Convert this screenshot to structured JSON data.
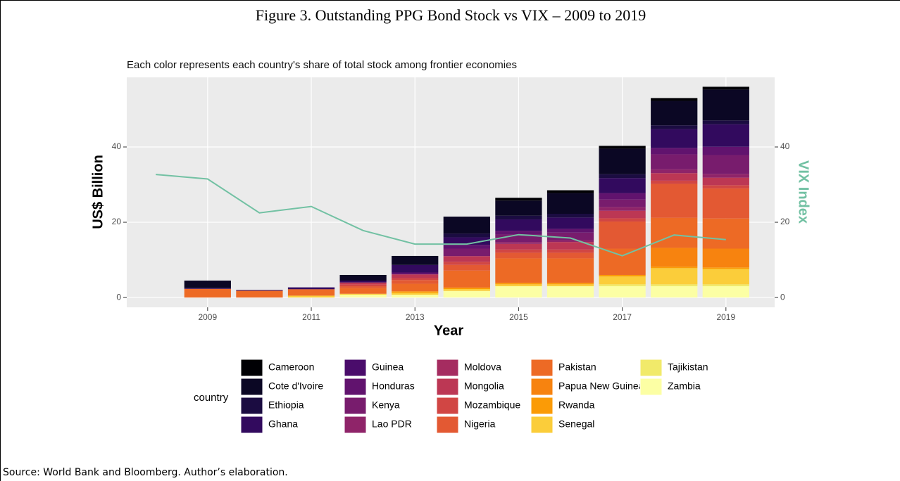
{
  "chart_data": {
    "type": "bar",
    "stacked": true,
    "title": "Figure 3. Outstanding PPG Bond Stock vs VIX – 2009 to 2019",
    "subtitle": "Each color represents each country's share of total stock among frontier economies",
    "source": "Source: World Bank and Bloomberg. Author’s elaboration.",
    "x_label": "Year",
    "y_label": "US$ Billion",
    "y2_label": "VIX Index",
    "legend_title": "country",
    "x": [
      2009,
      2010,
      2011,
      2012,
      2013,
      2014,
      2015,
      2016,
      2017,
      2018,
      2019
    ],
    "xlim": [
      2007.44,
      2019.94
    ],
    "xticks": [
      2009,
      2011,
      2013,
      2015,
      2017,
      2019
    ],
    "ylim": [
      -2.6,
      58.5
    ],
    "yticks": [
      0,
      20,
      40
    ],
    "y2lim": [
      -2.6,
      58.5
    ],
    "y2ticks": [
      0,
      20,
      40
    ],
    "grid": true,
    "series": [
      {
        "name": "Cameroon",
        "color": "#000004",
        "values": [
          0,
          0,
          0,
          0,
          0,
          0,
          0.75,
          0.75,
          0.75,
          0.75,
          0.75
        ]
      },
      {
        "name": "Cote d'Ivoire",
        "color": "#0b0724",
        "values": [
          2,
          0,
          0,
          1.5,
          2.4,
          4.5,
          4,
          5.5,
          6.8,
          6.5,
          8.2
        ]
      },
      {
        "name": "Ethiopia",
        "color": "#1b0c41",
        "values": [
          0,
          0,
          0,
          0,
          0,
          1,
          1,
          1,
          1,
          1,
          1
        ]
      },
      {
        "name": "Ghana",
        "color": "#320a5e",
        "values": [
          0.2,
          0.2,
          0.5,
          0.5,
          2,
          2,
          3,
          3,
          4,
          5,
          6
        ]
      },
      {
        "name": "Guinea",
        "color": "#4a0c6b",
        "values": [
          0,
          0,
          0,
          0,
          0,
          0,
          0,
          0,
          0,
          0,
          0
        ]
      },
      {
        "name": "Honduras",
        "color": "#61136e",
        "values": [
          0,
          0,
          0,
          0,
          0.5,
          1,
          1,
          1,
          1.7,
          1.7,
          2.2
        ]
      },
      {
        "name": "Kenya",
        "color": "#781c6d",
        "values": [
          0,
          0,
          0,
          0,
          0,
          2,
          2,
          2,
          2,
          4,
          5
        ]
      },
      {
        "name": "Lao PDR",
        "color": "#8f2469",
        "values": [
          0,
          0,
          0,
          0,
          0,
          0,
          0.5,
          0.5,
          1,
          1,
          1
        ]
      },
      {
        "name": "Moldova",
        "color": "#a52c60",
        "values": [
          0,
          0,
          0,
          0,
          0,
          0,
          0,
          0,
          0,
          0,
          0
        ]
      },
      {
        "name": "Mongolia",
        "color": "#bc3754",
        "values": [
          0,
          0,
          0,
          0.5,
          1,
          1.5,
          1.5,
          2,
          2,
          2,
          2
        ]
      },
      {
        "name": "Mozambique",
        "color": "#d14644",
        "values": [
          0,
          0,
          0,
          0.5,
          0.5,
          0.85,
          0.85,
          0.85,
          0.85,
          0.85,
          0.85
        ]
      },
      {
        "name": "Nigeria",
        "color": "#e35933",
        "values": [
          0,
          0,
          0,
          0.5,
          1,
          1.5,
          1.5,
          1.5,
          7.2,
          9,
          8
        ]
      },
      {
        "name": "Pakistan",
        "color": "#ed6a25",
        "values": [
          2.3,
          1.8,
          1.7,
          1.5,
          2,
          4.5,
          6.5,
          6.5,
          7,
          8,
          8
        ]
      },
      {
        "name": "Papua New Guinea",
        "color": "#f7830f",
        "values": [
          0,
          0,
          0,
          0,
          0,
          0,
          0,
          0,
          0,
          5,
          5
        ]
      },
      {
        "name": "Rwanda",
        "color": "#fb9b06",
        "values": [
          0,
          0,
          0,
          0,
          0.4,
          0.4,
          0.4,
          0.4,
          0.4,
          0.4,
          0.4
        ]
      },
      {
        "name": "Senegal",
        "color": "#fbcd3a",
        "values": [
          0,
          0,
          0.5,
          0.25,
          0.5,
          0.5,
          0.5,
          0.5,
          2.1,
          4.3,
          4.1
        ]
      },
      {
        "name": "Tajikistan",
        "color": "#f1ea6a",
        "values": [
          0,
          0,
          0,
          0,
          0,
          0,
          0,
          0,
          0.5,
          0.5,
          0.5
        ]
      },
      {
        "name": "Zambia",
        "color": "#fcffa4",
        "values": [
          0,
          0,
          0,
          0.75,
          0.75,
          1.75,
          3,
          3,
          3,
          3,
          3
        ]
      }
    ],
    "line": {
      "type": "line",
      "axis": "y2",
      "color": "#72c1a3",
      "x": [
        2008,
        2009,
        2010,
        2011,
        2012,
        2013,
        2014,
        2015,
        2016,
        2017,
        2018,
        2019
      ],
      "values": [
        32.7,
        31.5,
        22.5,
        24.2,
        17.8,
        14.2,
        14.2,
        16.7,
        15.8,
        11.1,
        16.6,
        15.4
      ]
    }
  }
}
